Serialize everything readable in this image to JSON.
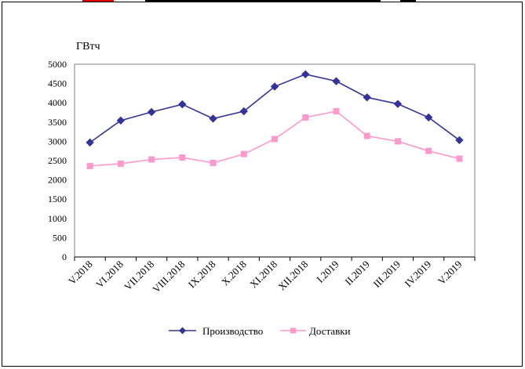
{
  "chart_data": {
    "type": "line",
    "title": "",
    "ylabel": "ГВтч",
    "xlabel": "",
    "ylim": [
      0,
      5000
    ],
    "yticks": [
      0,
      500,
      1000,
      1500,
      2000,
      2500,
      3000,
      3500,
      4000,
      4500,
      5000
    ],
    "grid": true,
    "legend_position": "bottom",
    "categories": [
      "V.2018",
      "VI.2018",
      "VII.2018",
      "VIII.2018",
      "IX.2018",
      "X.2018",
      "XI.2018",
      "XII.2018",
      "I.2019",
      "II.2019",
      "III.2019",
      "IV.2019",
      "V.2019"
    ],
    "series": [
      {
        "name": "Производство",
        "color": "#333399",
        "marker": "diamond",
        "values": [
          2970,
          3540,
          3760,
          3960,
          3590,
          3780,
          4420,
          4740,
          4560,
          4140,
          3970,
          3620,
          3030
        ]
      },
      {
        "name": "Доставки",
        "color": "#ff99cc",
        "marker": "square",
        "values": [
          2360,
          2420,
          2530,
          2580,
          2440,
          2670,
          3060,
          3620,
          3780,
          3140,
          3000,
          2750,
          2550
        ]
      }
    ]
  }
}
